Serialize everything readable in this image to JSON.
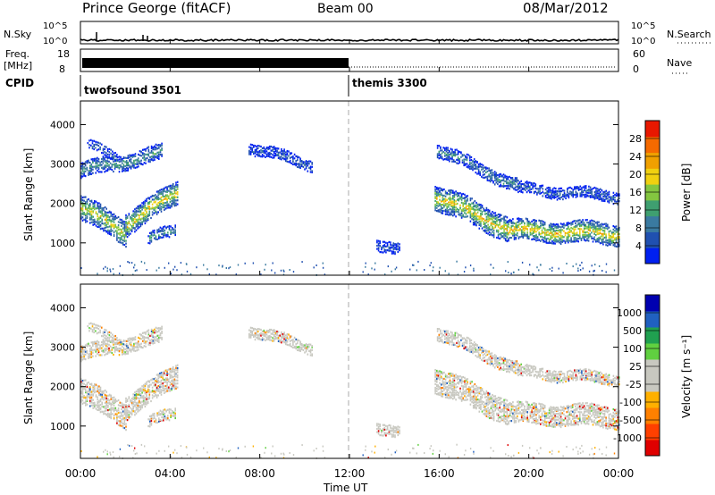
{
  "header": {
    "station": "Prince George (fitACF)",
    "beam": "Beam 00",
    "date": "08/Mar/2012"
  },
  "noise_panel": {
    "left_label": "N.Sky",
    "right_label": "N.Search",
    "left_ticks": [
      "10^5",
      "10^0"
    ],
    "right_ticks": [
      "10^5",
      "10^0"
    ]
  },
  "freq_panel": {
    "left_label_1": "Freq.",
    "left_label_2": "[MHz]",
    "left_ticks": [
      "18",
      "8"
    ],
    "right_label": "Nave",
    "right_ticks": [
      "60",
      "0"
    ]
  },
  "cpid": {
    "label": "CPID",
    "segments": [
      {
        "name": "twofsound 3501",
        "start_hour": 0
      },
      {
        "name": "themis 3300",
        "start_hour": 12
      }
    ]
  },
  "power_panel": {
    "ylabel": "Slant Range [km]",
    "yticks": [
      "4000",
      "3000",
      "2000",
      "1000"
    ],
    "colorbar_label": "Power [dB]",
    "colorbar_ticks": [
      "28",
      "24",
      "20",
      "16",
      "12",
      "8",
      "4"
    ],
    "colorbar_colors": [
      "#0020f0",
      "#2050b0",
      "#3a7aa0",
      "#3f9f70",
      "#84c640",
      "#f0d010",
      "#f0a000",
      "#f56a00",
      "#e81800"
    ]
  },
  "velocity_panel": {
    "ylabel": "Slant Range [km]",
    "yticks": [
      "4000",
      "3000",
      "2000",
      "1000"
    ],
    "colorbar_label": "Velocity [m s⁻¹]",
    "colorbar_ticks": [
      "1000",
      "500",
      "100",
      "25",
      "-25",
      "-100",
      "-500",
      "-1000"
    ],
    "colorbar_colors": [
      "#e00000",
      "#ff4000",
      "#ff8000",
      "#ffb000",
      "#c8c8c0",
      "#c8c8c0",
      "#60d040",
      "#20a050",
      "#2060c0",
      "#0000b0"
    ]
  },
  "xaxis": {
    "xlabel": "Time UT",
    "ticks": [
      "00:00",
      "04:00",
      "08:00",
      "12:00",
      "16:00",
      "20:00",
      "00:00"
    ]
  },
  "chart_data": {
    "type": "heatmap",
    "title": "Prince George (fitACF)",
    "xlabel": "Time UT",
    "ylabel": "Slant Range [km]",
    "xlim_hours": [
      0,
      24
    ],
    "ylim_km": [
      180,
      4600
    ],
    "power_colorbar": {
      "label": "Power [dB]",
      "range": [
        0,
        32
      ]
    },
    "velocity_colorbar": {
      "label": "Velocity [m s⁻¹]",
      "ticks": [
        1000,
        500,
        100,
        25,
        -25,
        -100,
        -500,
        -1000
      ]
    },
    "vertical_marker_hour": 12,
    "scatter_bands": [
      {
        "t0": 0.0,
        "t1": 2.0,
        "r0": 1900,
        "r1": 1300,
        "width": 600,
        "power": 18
      },
      {
        "t0": 2.0,
        "t1": 4.3,
        "r0": 1500,
        "r1": 2300,
        "width": 550,
        "power": 20
      },
      {
        "t0": 0.0,
        "t1": 3.6,
        "r0": 2850,
        "r1": 3300,
        "width": 350,
        "power": 12
      },
      {
        "t0": 0.3,
        "t1": 1.6,
        "r0": 3500,
        "r1": 3200,
        "width": 200,
        "power": 7
      },
      {
        "t0": 3.0,
        "t1": 4.2,
        "r0": 1100,
        "r1": 1350,
        "width": 250,
        "power": 12
      },
      {
        "t0": 7.5,
        "t1": 10.3,
        "r0": 3450,
        "r1": 3000,
        "width": 250,
        "power": 6
      },
      {
        "t0": 13.2,
        "t1": 14.2,
        "r0": 1000,
        "r1": 800,
        "width": 250,
        "power": 5
      },
      {
        "t0": 15.8,
        "t1": 19.0,
        "r0": 2200,
        "r1": 1400,
        "width": 600,
        "power": 20
      },
      {
        "t0": 19.0,
        "t1": 24.0,
        "r0": 1350,
        "r1": 1250,
        "width": 500,
        "power": 21
      },
      {
        "t0": 15.9,
        "t1": 19.5,
        "r0": 3400,
        "r1": 2450,
        "width": 300,
        "power": 10
      },
      {
        "t0": 19.5,
        "t1": 24.0,
        "r0": 2400,
        "r1": 2200,
        "width": 250,
        "power": 7
      }
    ]
  }
}
